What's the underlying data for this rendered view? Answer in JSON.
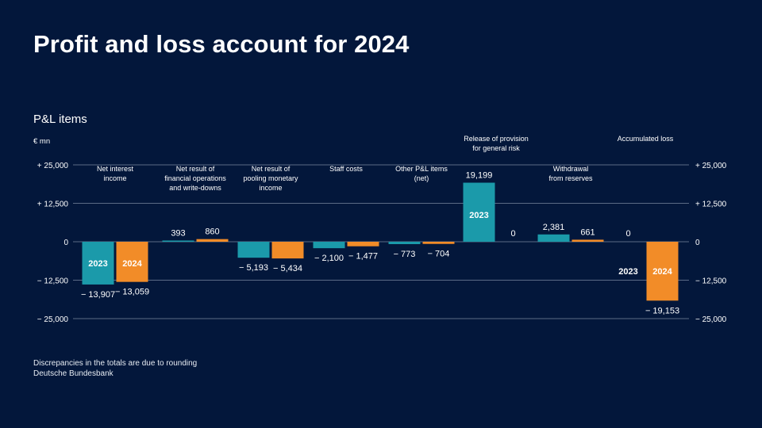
{
  "page": {
    "title": "Profit and loss account for 2024",
    "footnote_1": "Discrepancies in the totals are due to rounding",
    "footnote_2": "Deutsche Bundesbank"
  },
  "colors": {
    "background": "#03173b",
    "y2023": "#1b9aaa",
    "y2024": "#f28c28",
    "grid": "#5b6b86"
  },
  "chart_data": {
    "type": "bar",
    "title": "P&L items",
    "ylabel": "€ mn",
    "ylim": [
      -25000,
      25000
    ],
    "yticks": [
      25000,
      12500,
      0,
      -12500,
      -25000
    ],
    "ytick_labels": [
      "+ 25,000",
      "+ 12,500",
      "0",
      "− 12,500",
      "− 25,000"
    ],
    "series_names": [
      "2023",
      "2024"
    ],
    "categories": [
      {
        "label": [
          "Net interest",
          "income"
        ],
        "v2023": -13907,
        "v2024": -13059,
        "l2023": "− 13,907",
        "l2024": "− 13,059"
      },
      {
        "label": [
          "Net result of",
          "financial operations",
          "and write-downs"
        ],
        "v2023": 393,
        "v2024": 860,
        "l2023": "393",
        "l2024": "860"
      },
      {
        "label": [
          "Net result of",
          "pooling monetary",
          "income"
        ],
        "v2023": -5193,
        "v2024": -5434,
        "l2023": "− 5,193",
        "l2024": "− 5,434"
      },
      {
        "label": [
          "Staff costs"
        ],
        "v2023": -2100,
        "v2024": -1477,
        "l2023": "− 2,100",
        "l2024": "− 1,477"
      },
      {
        "label": [
          "Other P&L items",
          "(net)"
        ],
        "v2023": -773,
        "v2024": -704,
        "l2023": "− 773",
        "l2024": "− 704"
      },
      {
        "label": [
          "Release of provision",
          "for general risk"
        ],
        "v2023": 19199,
        "v2024": 0,
        "l2023": "19,199",
        "l2024": "0"
      },
      {
        "label": [
          "Withdrawal",
          "from reserves"
        ],
        "v2023": 2381,
        "v2024": 661,
        "l2023": "2,381",
        "l2024": "661"
      },
      {
        "label": [
          "Accumulated loss"
        ],
        "v2023": 0,
        "v2024": -19153,
        "l2023": "0",
        "l2024": "− 19,153"
      }
    ]
  }
}
